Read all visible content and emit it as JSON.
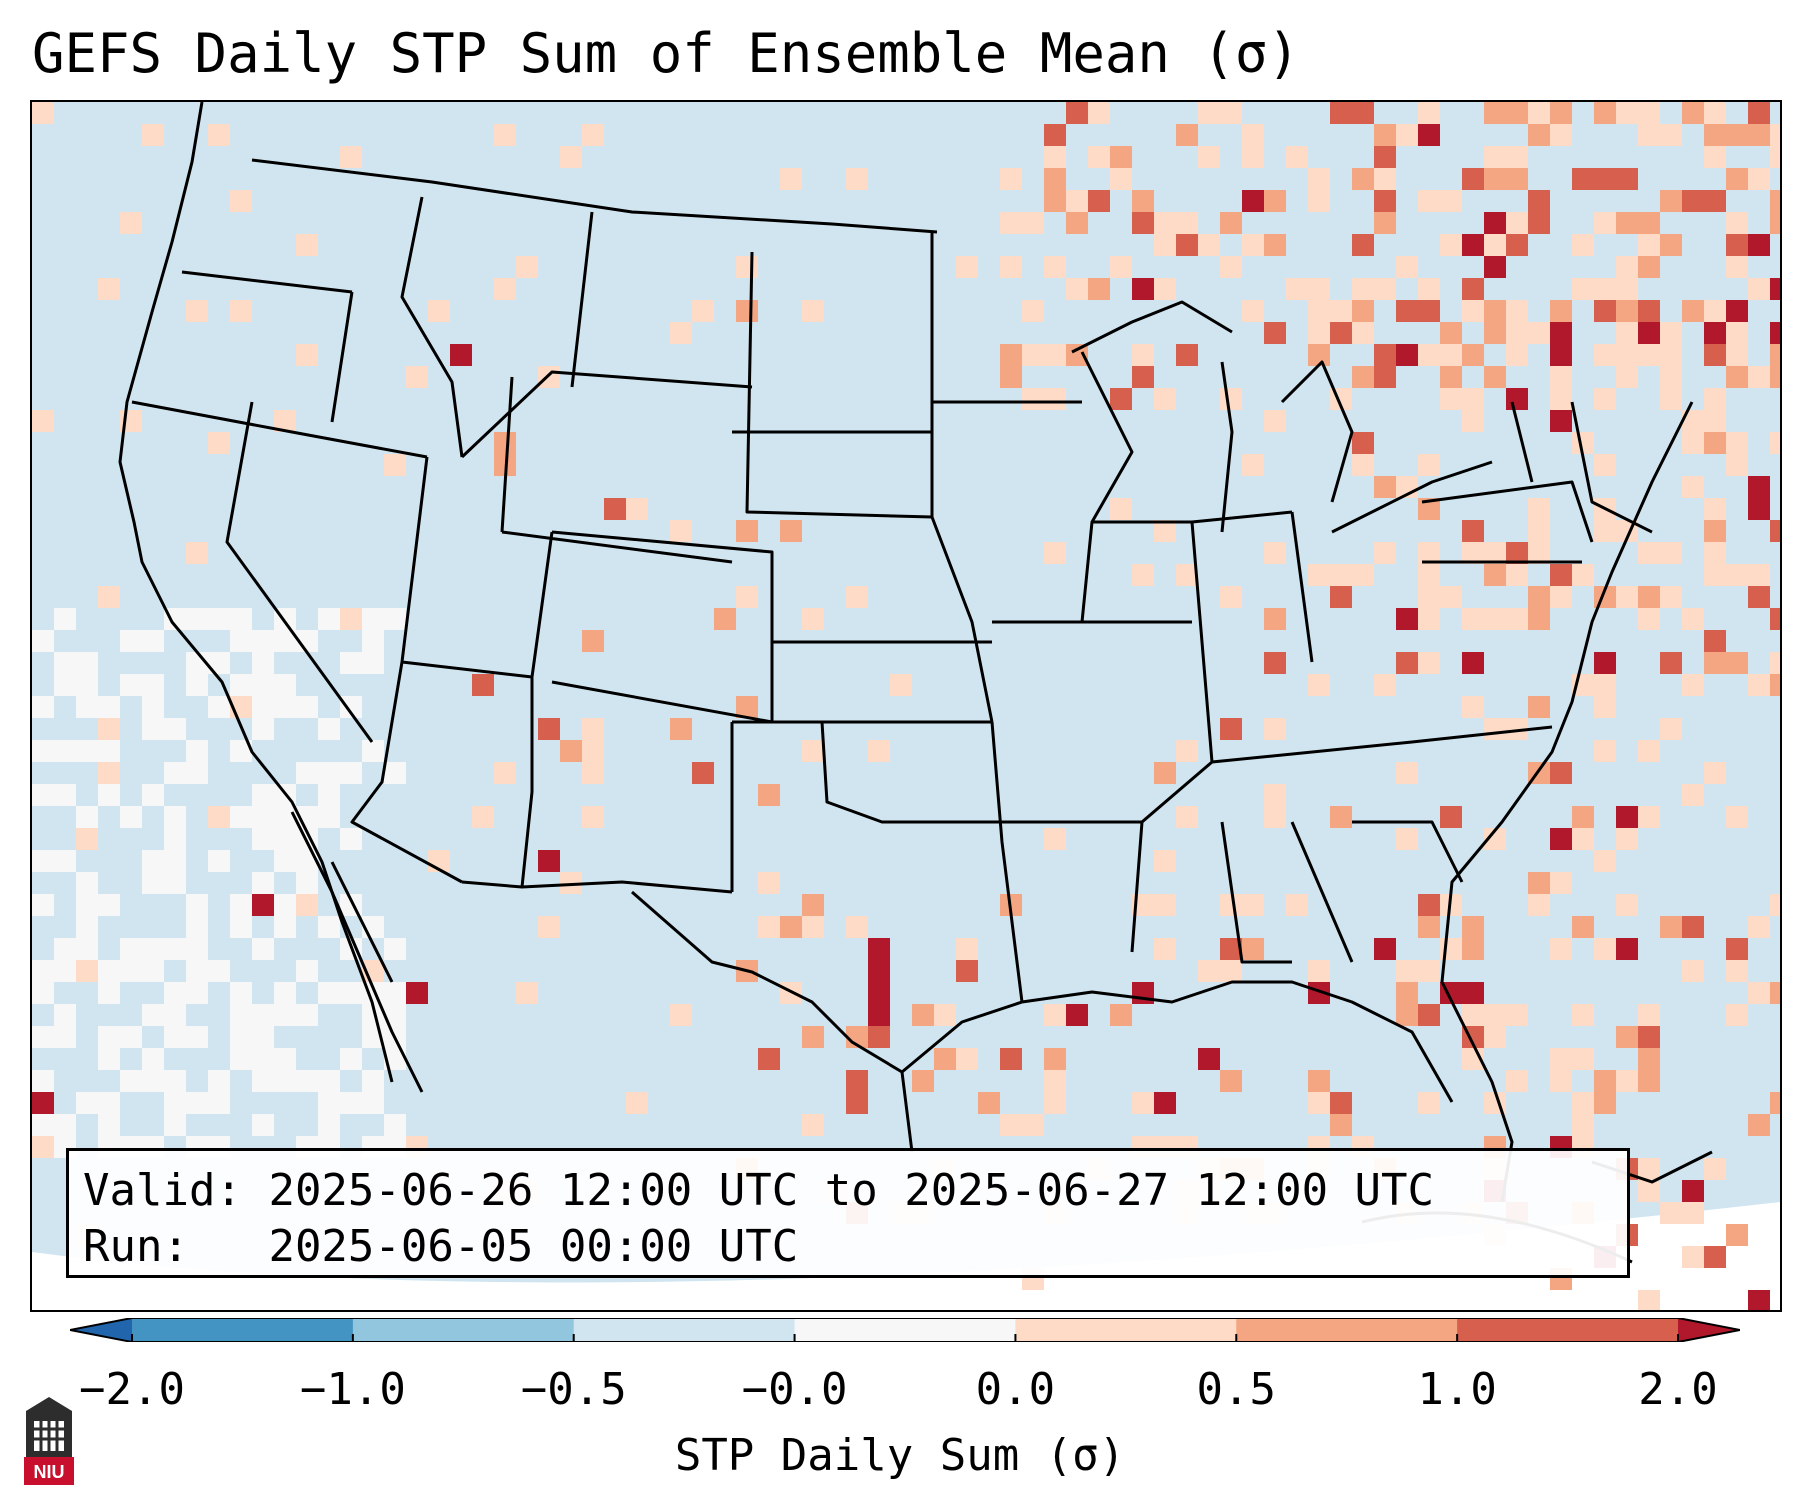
{
  "title": "GEFS Daily STP Sum of Ensemble Mean (σ)",
  "info": {
    "valid_label": "Valid:",
    "valid_value": "2025-06-26 12:00 UTC to 2025-06-27 12:00 UTC",
    "run_label": "Run:",
    "run_value": "2025-06-05 00:00 UTC"
  },
  "colorbar": {
    "label": "STP Daily Sum (σ)",
    "ticks": [
      "−2.0",
      "−1.0",
      "−0.5",
      "−0.0",
      "0.0",
      "0.5",
      "1.0",
      "2.0"
    ],
    "bins": [
      {
        "range": "< -2.0",
        "color": "#2166ac"
      },
      {
        "range": "-2.0 to -1.0",
        "color": "#4393c3"
      },
      {
        "range": "-1.0 to -0.5",
        "color": "#92c5de"
      },
      {
        "range": "-0.5 to -0.0",
        "color": "#d1e5f0"
      },
      {
        "range": "-0.0 to 0.0",
        "color": "#f7f7f7"
      },
      {
        "range": "0.0 to 0.5",
        "color": "#fddbc7"
      },
      {
        "range": "0.5 to 1.0",
        "color": "#f4a582"
      },
      {
        "range": "1.0 to 2.0",
        "color": "#d6604d"
      },
      {
        "range": "> 2.0",
        "color": "#b2182b"
      }
    ]
  },
  "map": {
    "region": "CONUS",
    "background_anomaly_color": "#d1e5f0",
    "outline_color": "#000000"
  },
  "logo": {
    "text": "NIU",
    "icon": "university-tower-icon"
  }
}
